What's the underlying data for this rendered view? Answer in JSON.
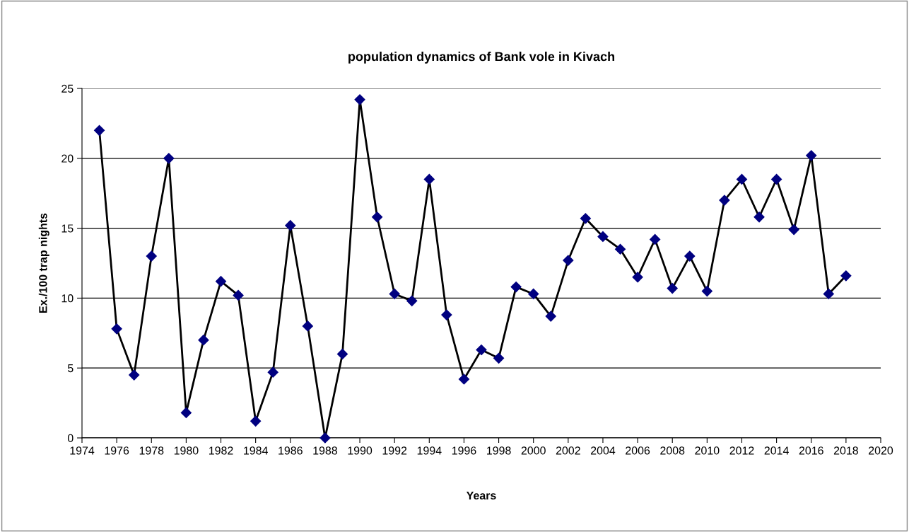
{
  "chart_data": {
    "type": "line",
    "title": "population dynamics of Bank vole in Kivach",
    "xlabel": "Years",
    "ylabel": "Ex./100 trap nights",
    "x": [
      1975,
      1976,
      1977,
      1978,
      1979,
      1980,
      1981,
      1982,
      1983,
      1984,
      1985,
      1986,
      1987,
      1988,
      1989,
      1990,
      1991,
      1992,
      1993,
      1994,
      1995,
      1996,
      1997,
      1998,
      1999,
      2000,
      2001,
      2002,
      2003,
      2004,
      2005,
      2006,
      2007,
      2008,
      2009,
      2010,
      2011,
      2012,
      2013,
      2014,
      2015,
      2016,
      2017,
      2018
    ],
    "series": [
      {
        "color": "#000080",
        "values": [
          22.0,
          7.8,
          4.5,
          13.0,
          20.0,
          1.8,
          7.0,
          11.2,
          10.2,
          1.2,
          4.7,
          15.2,
          8.0,
          0,
          6.0,
          24.2,
          15.8,
          10.3,
          9.8,
          18.5,
          8.8,
          4.2,
          6.3,
          5.7,
          10.8,
          10.3,
          8.7,
          12.7,
          15.7,
          14.4,
          13.5,
          11.5,
          14.2,
          10.7,
          13.0,
          10.5,
          17.0,
          18.5,
          15.8,
          18.5,
          14.9,
          20.2,
          10.3,
          11.6
        ]
      }
    ],
    "xlim": [
      1974,
      2020
    ],
    "xticks": [
      1974,
      1976,
      1978,
      1980,
      1982,
      1984,
      1986,
      1988,
      1990,
      1992,
      1994,
      1996,
      1998,
      2000,
      2002,
      2004,
      2006,
      2008,
      2010,
      2012,
      2014,
      2016,
      2018,
      2020
    ],
    "ylim": [
      0,
      25
    ],
    "yticks": [
      0,
      5,
      10,
      15,
      20,
      25
    ],
    "grid": "y",
    "marker": "diamond",
    "line_style": "solid",
    "legend": false
  }
}
